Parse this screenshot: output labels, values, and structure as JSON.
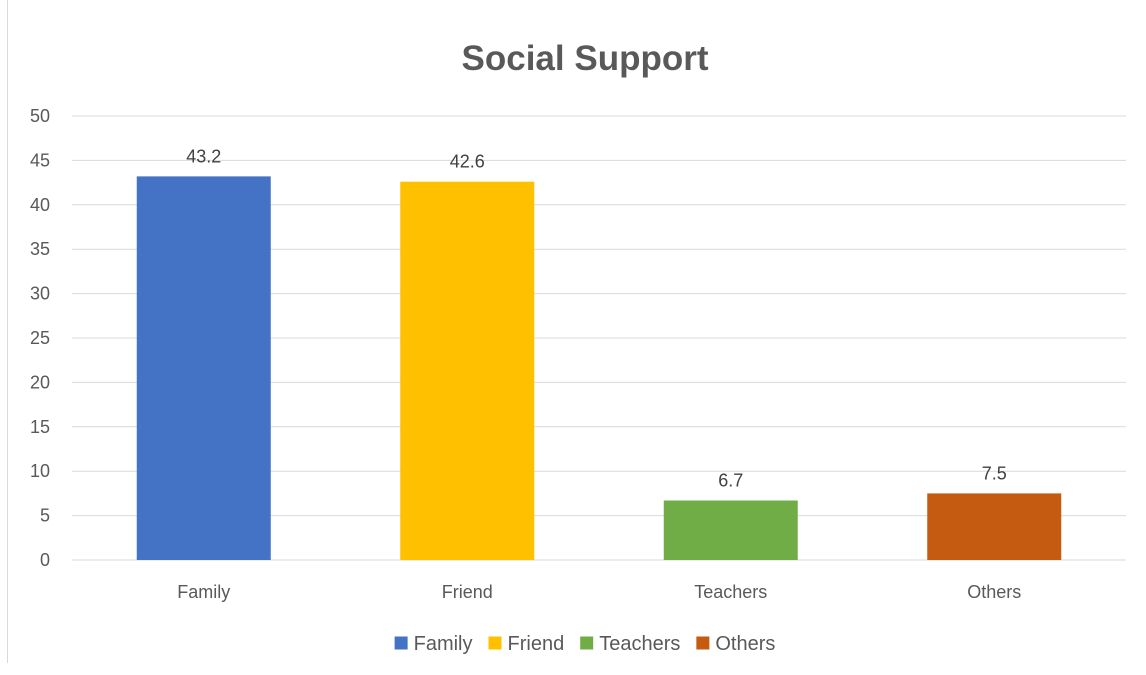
{
  "chart_data": {
    "type": "bar",
    "title": "Social Support",
    "xlabel": "",
    "ylabel": "",
    "categories": [
      "Family",
      "Friend",
      "Teachers",
      "Others"
    ],
    "values": [
      43.2,
      42.6,
      6.7,
      7.5
    ],
    "data_labels": [
      "43.2",
      "42.6",
      "6.7",
      "7.5"
    ],
    "colors": [
      "#4472C4",
      "#FFC000",
      "#70AD47",
      "#C55A11"
    ],
    "ylim": [
      0,
      50
    ],
    "yticks": [
      0,
      5,
      10,
      15,
      20,
      25,
      30,
      35,
      40,
      45,
      50
    ],
    "grid": true,
    "legend": {
      "position": "bottom",
      "entries": [
        "Family",
        "Friend",
        "Teachers",
        "Others"
      ]
    }
  }
}
